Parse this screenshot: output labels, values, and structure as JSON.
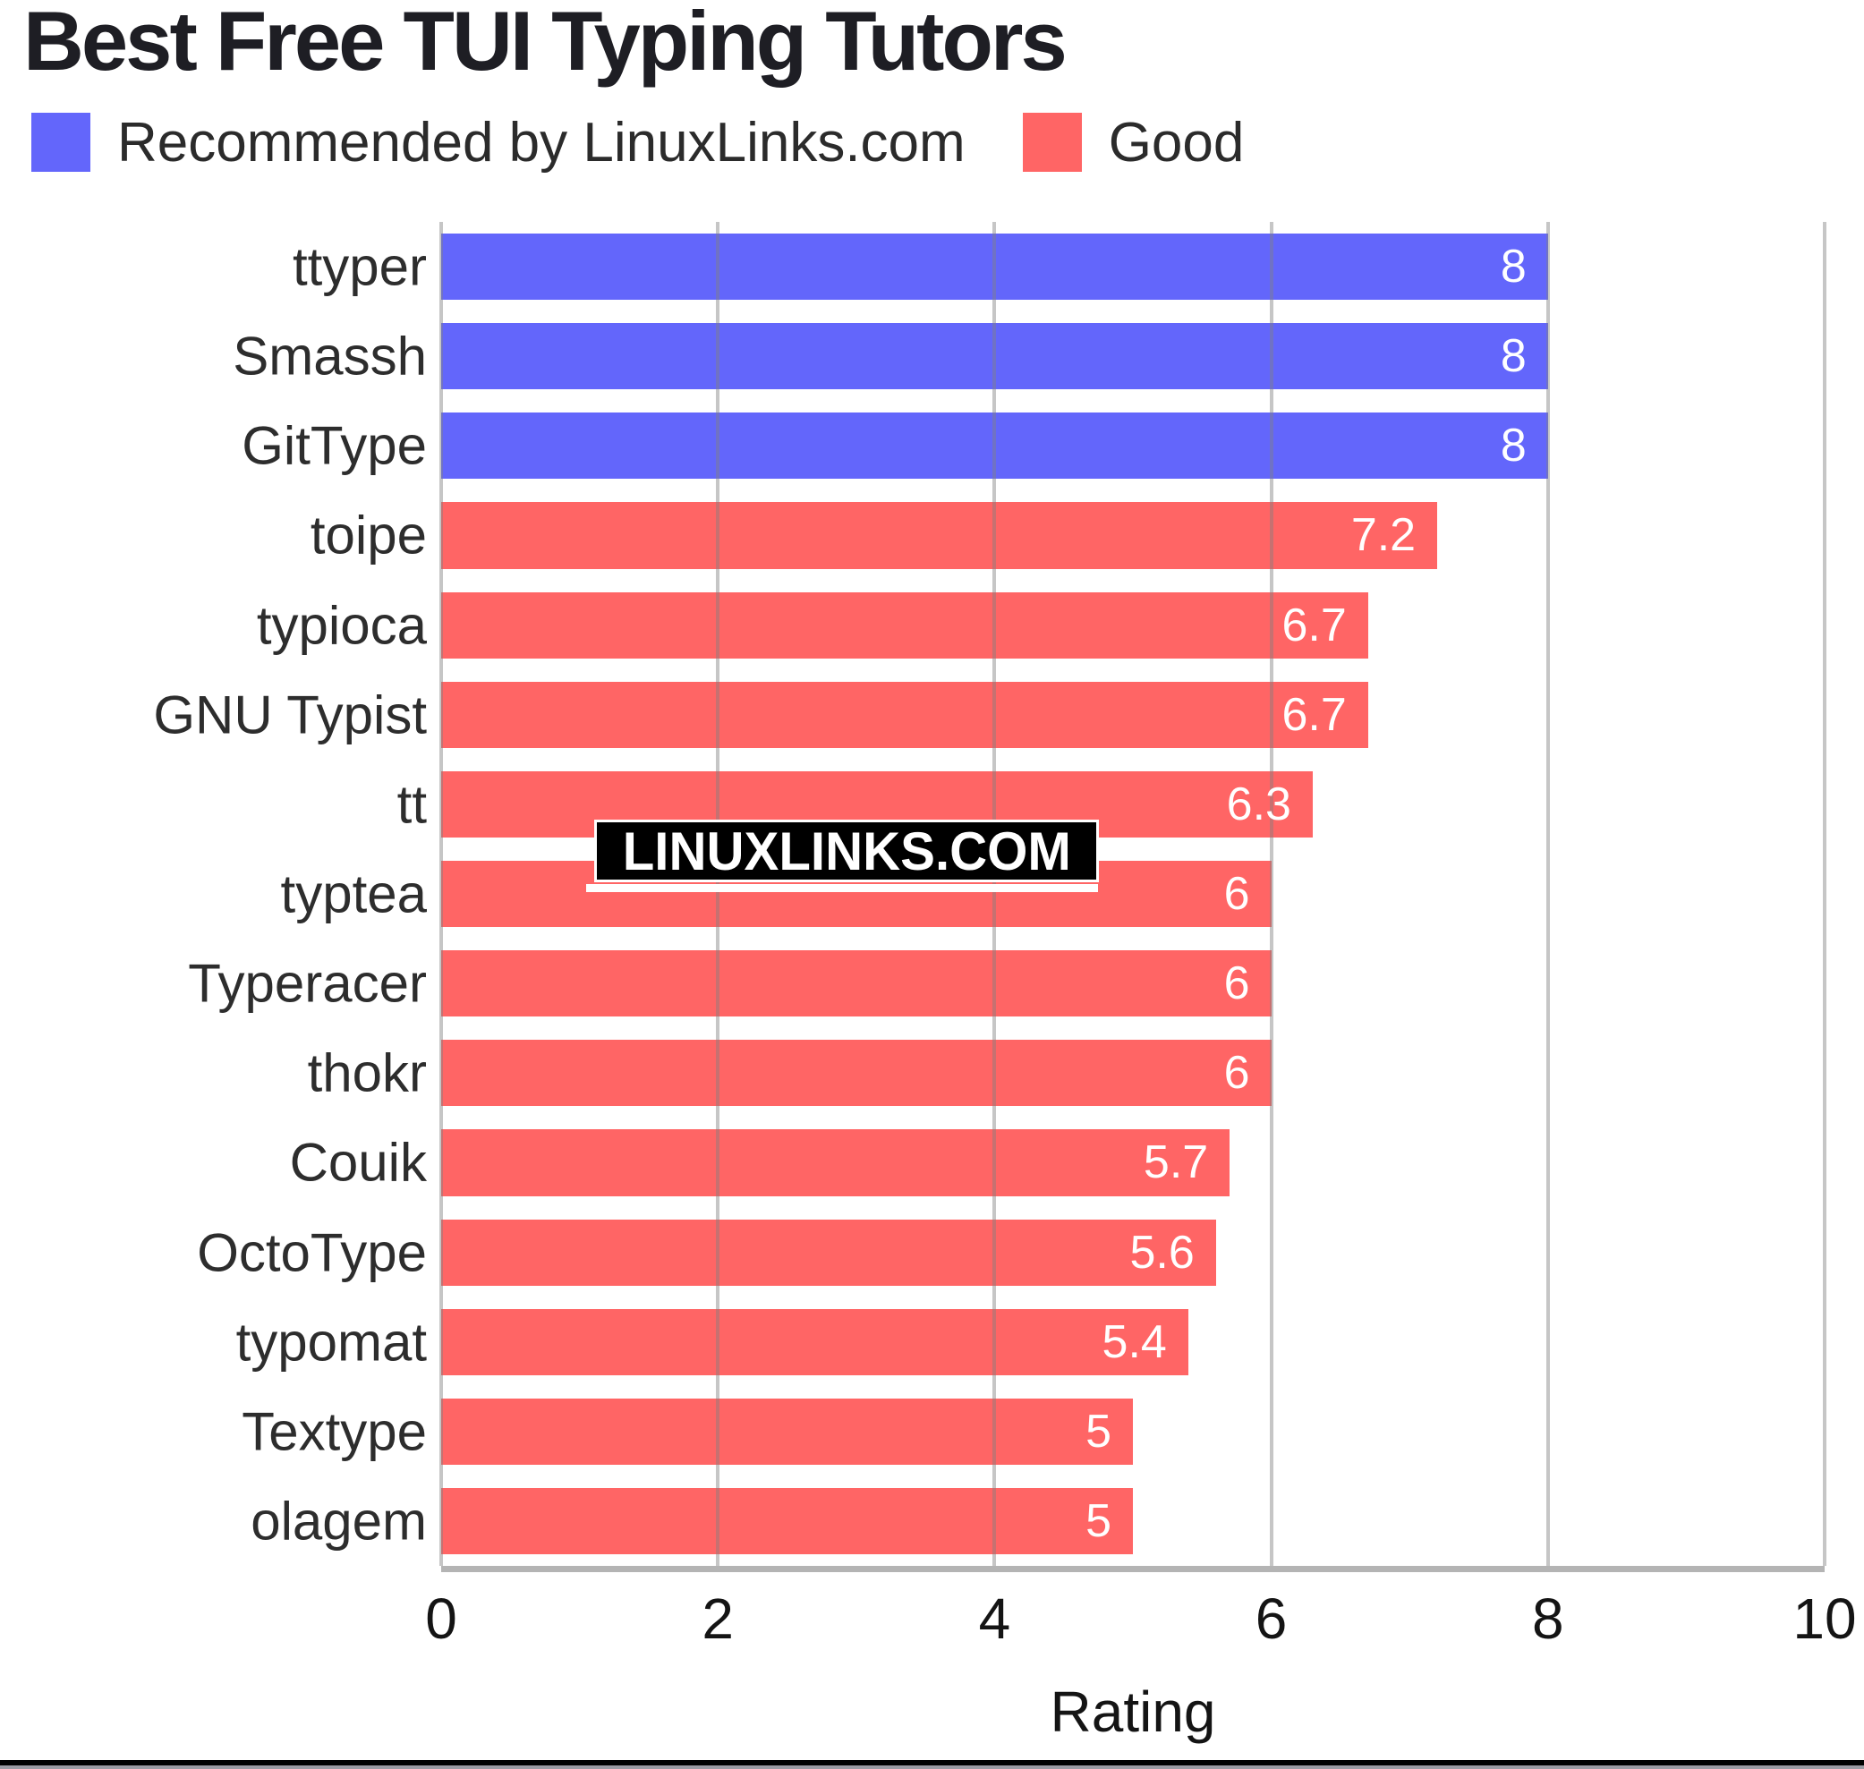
{
  "title": "Best Free TUI Typing Tutors",
  "legend": {
    "items": [
      {
        "label": "Recommended by LinuxLinks.com",
        "color": "#6366fb"
      },
      {
        "label": "Good",
        "color": "#ff6565"
      }
    ]
  },
  "watermark": {
    "text": "LINUXLINKS.COM"
  },
  "axis": {
    "xlabel": "Rating"
  },
  "colors": {
    "recommended": "#6366fb",
    "good": "#ff6565",
    "value_label": "#ffffff",
    "grid": "rgba(128,128,128,0.45)",
    "axis_line": "#b4b4b4",
    "text": "#2d2d2d"
  },
  "chart_data": {
    "type": "bar",
    "orientation": "horizontal",
    "title": "Best Free TUI Typing Tutors",
    "xlabel": "Rating",
    "ylabel": "",
    "xlim": [
      0,
      10
    ],
    "xticks": [
      0,
      2,
      4,
      6,
      8,
      10
    ],
    "grid": true,
    "legend_position": "top",
    "series": [
      {
        "name": "Recommended by LinuxLinks.com",
        "color": "#6366fb",
        "group": "recommended"
      },
      {
        "name": "Good",
        "color": "#ff6565",
        "group": "good"
      }
    ],
    "categories": [
      "ttyper",
      "Smassh",
      "GitType",
      "toipe",
      "typioca",
      "GNU Typist",
      "tt",
      "typtea",
      "Typeracer",
      "thokr",
      "Couik",
      "OctoType",
      "typomat",
      "Textype",
      "olagem"
    ],
    "values": [
      8,
      8,
      8,
      7.2,
      6.7,
      6.7,
      6.3,
      6,
      6,
      6,
      5.7,
      5.6,
      5.4,
      5,
      5
    ],
    "bars": [
      {
        "label": "ttyper",
        "value": 8,
        "value_label": "8",
        "group": "recommended"
      },
      {
        "label": "Smassh",
        "value": 8,
        "value_label": "8",
        "group": "recommended"
      },
      {
        "label": "GitType",
        "value": 8,
        "value_label": "8",
        "group": "recommended"
      },
      {
        "label": "toipe",
        "value": 7.2,
        "value_label": "7.2",
        "group": "good"
      },
      {
        "label": "typioca",
        "value": 6.7,
        "value_label": "6.7",
        "group": "good"
      },
      {
        "label": "GNU Typist",
        "value": 6.7,
        "value_label": "6.7",
        "group": "good"
      },
      {
        "label": "tt",
        "value": 6.3,
        "value_label": "6.3",
        "group": "good"
      },
      {
        "label": "typtea",
        "value": 6,
        "value_label": "6",
        "group": "good"
      },
      {
        "label": "Typeracer",
        "value": 6,
        "value_label": "6",
        "group": "good"
      },
      {
        "label": "thokr",
        "value": 6,
        "value_label": "6",
        "group": "good"
      },
      {
        "label": "Couik",
        "value": 5.7,
        "value_label": "5.7",
        "group": "good"
      },
      {
        "label": "OctoType",
        "value": 5.6,
        "value_label": "5.6",
        "group": "good"
      },
      {
        "label": "typomat",
        "value": 5.4,
        "value_label": "5.4",
        "group": "good"
      },
      {
        "label": "Textype",
        "value": 5,
        "value_label": "5",
        "group": "good"
      },
      {
        "label": "olagem",
        "value": 5,
        "value_label": "5",
        "group": "good"
      }
    ]
  }
}
